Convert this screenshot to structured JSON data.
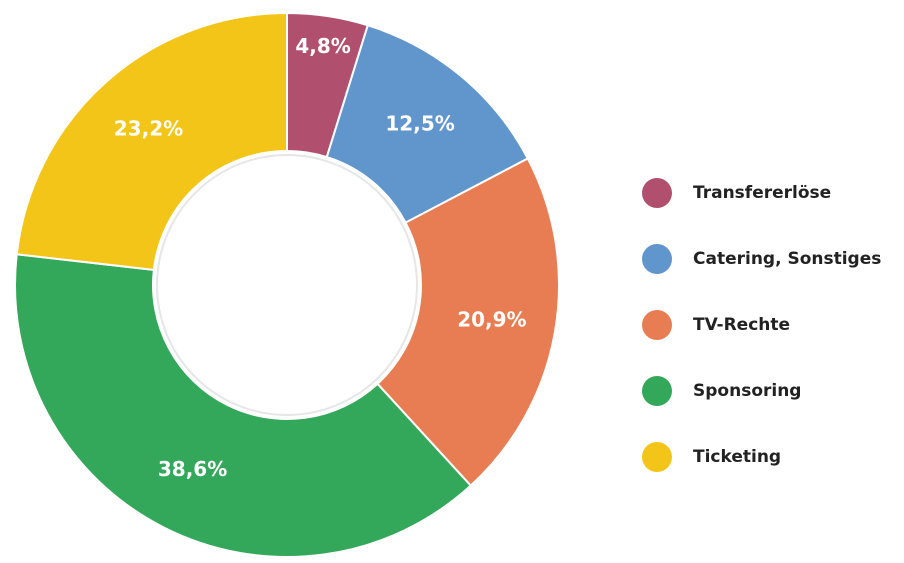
{
  "chart_data": {
    "type": "pie",
    "categories": [
      "Transfererlöse",
      "Catering, Sonstiges",
      "TV-Rechte",
      "Sponsoring",
      "Ticketing"
    ],
    "values": [
      4.8,
      12.5,
      20.9,
      38.6,
      23.2
    ],
    "value_labels": [
      "4,8%",
      "12,5%",
      "20,9%",
      "38,6%",
      "23,2%"
    ],
    "colors": [
      "#b0506e",
      "#6196cc",
      "#e87c52",
      "#34a85a",
      "#f2c518"
    ],
    "legend": "right"
  }
}
